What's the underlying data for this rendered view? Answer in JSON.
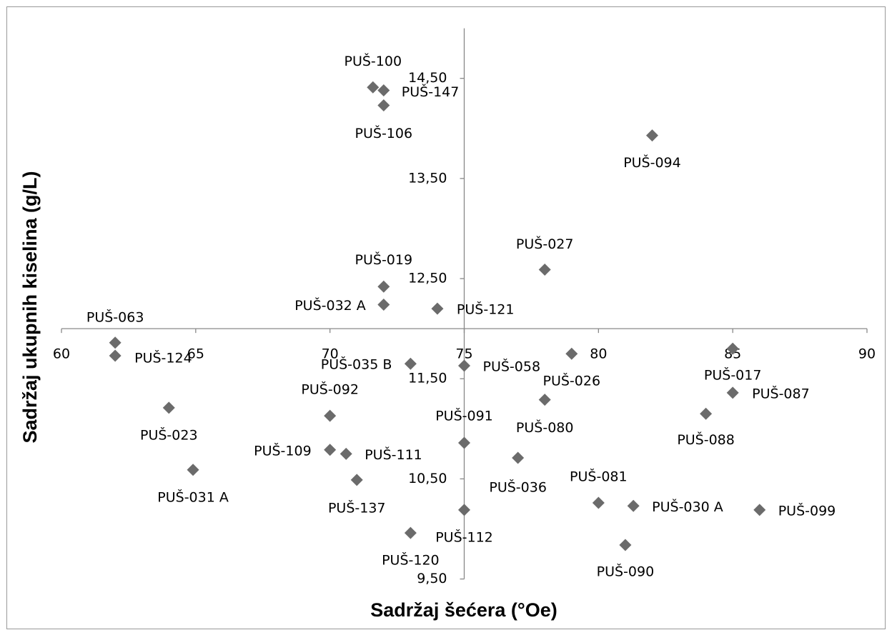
{
  "chart_data": {
    "type": "scatter",
    "xlabel": "Sadržaj šećera (°Oe)",
    "ylabel": "Sadržaj ukupnih kiselina (g/L)",
    "xlim": [
      60,
      90
    ],
    "xticks": [
      60,
      65,
      70,
      75,
      80,
      85,
      90
    ],
    "ylim": [
      9.5,
      15
    ],
    "yticks": [
      {
        "value": 9.5,
        "label": "9,50"
      },
      {
        "value": 10.5,
        "label": "10,50"
      },
      {
        "value": 11.5,
        "label": "11,50"
      },
      {
        "value": 12.5,
        "label": "12,50"
      },
      {
        "value": 13.5,
        "label": "13,50"
      },
      {
        "value": 14.5,
        "label": "14,50"
      }
    ],
    "axis_cross": [
      75,
      12
    ],
    "color": "#6b6b6b",
    "points": [
      {
        "label": "PUŠ-100",
        "x": 71.6,
        "y": 14.41
      },
      {
        "label": "PUŠ-147",
        "x": 72,
        "y": 14.38
      },
      {
        "label": "PUŠ-106",
        "x": 72,
        "y": 14.23
      },
      {
        "label": "PUŠ-094",
        "x": 82,
        "y": 13.93
      },
      {
        "label": "PUŠ-027",
        "x": 78,
        "y": 12.59
      },
      {
        "label": "PUŠ-019",
        "x": 72,
        "y": 12.42
      },
      {
        "label": "PUŠ-032 A",
        "x": 72,
        "y": 12.24
      },
      {
        "label": "PUŠ-121",
        "x": 74,
        "y": 12.2
      },
      {
        "label": "PUŠ-063",
        "x": 62,
        "y": 11.86
      },
      {
        "label": "PUŠ-124",
        "x": 62,
        "y": 11.73
      },
      {
        "label": "PUŠ-035 B",
        "x": 73,
        "y": 11.65
      },
      {
        "label": "PUŠ-058",
        "x": 75,
        "y": 11.63
      },
      {
        "label": "PUŠ-017",
        "x": 85,
        "y": 11.8
      },
      {
        "label": "PUŠ-026",
        "x": 79,
        "y": 11.75
      },
      {
        "label": "PUŠ-087",
        "x": 85,
        "y": 11.36
      },
      {
        "label": "PUŠ-080",
        "x": 78,
        "y": 11.29
      },
      {
        "label": "PUŠ-088",
        "x": 84,
        "y": 11.15
      },
      {
        "label": "PUŠ-023",
        "x": 64,
        "y": 11.21
      },
      {
        "label": "PUŠ-092",
        "x": 70,
        "y": 11.13
      },
      {
        "label": "PUŠ-091",
        "x": 75,
        "y": 10.86
      },
      {
        "label": "PUŠ-109",
        "x": 70,
        "y": 10.79
      },
      {
        "label": "PUŠ-111",
        "x": 70.6,
        "y": 10.75
      },
      {
        "label": "PUŠ-036",
        "x": 77,
        "y": 10.71
      },
      {
        "label": "PUŠ-031 A",
        "x": 64.9,
        "y": 10.59
      },
      {
        "label": "PUŠ-137",
        "x": 71,
        "y": 10.49
      },
      {
        "label": "PUŠ-081",
        "x": 80,
        "y": 10.26
      },
      {
        "label": "PUŠ-030 A",
        "x": 81.3,
        "y": 10.23
      },
      {
        "label": "PUŠ-099",
        "x": 86,
        "y": 10.19
      },
      {
        "label": "PUŠ-112",
        "x": 75,
        "y": 10.19
      },
      {
        "label": "PUŠ-120",
        "x": 73,
        "y": 9.96
      },
      {
        "label": "PUŠ-090",
        "x": 81,
        "y": 9.84
      }
    ]
  }
}
